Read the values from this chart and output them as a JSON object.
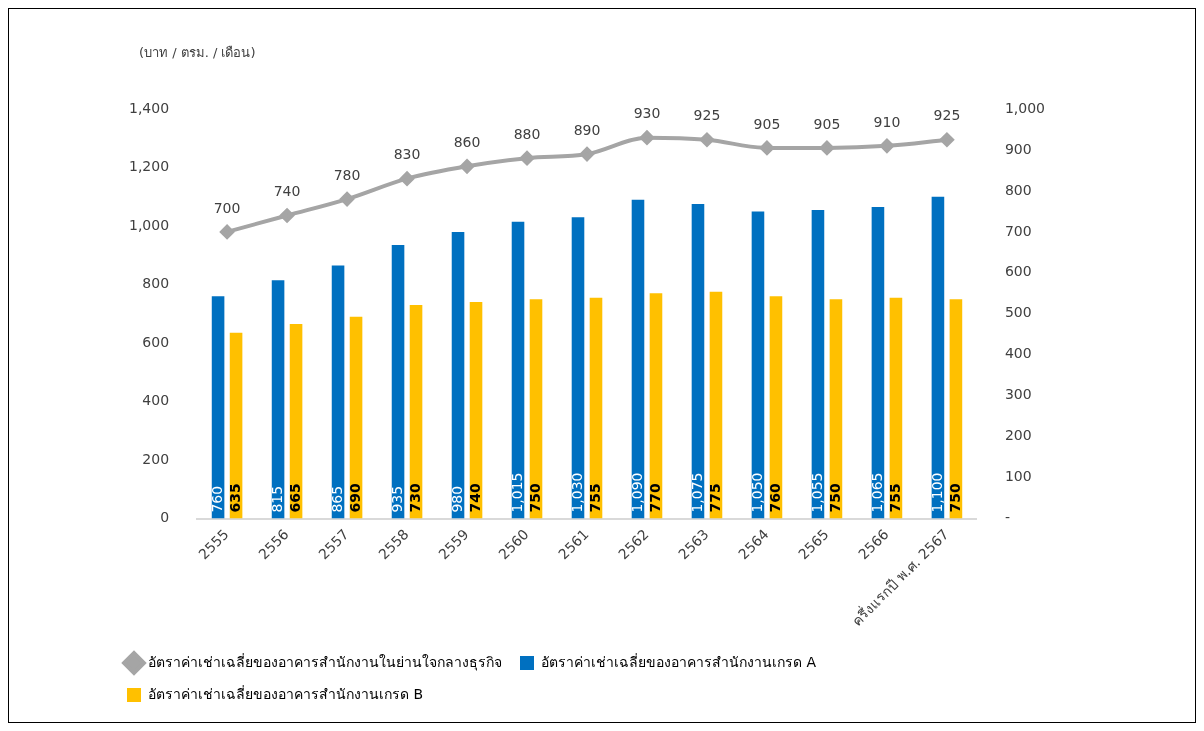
{
  "chart_data": {
    "type": "bar",
    "ylabel": "(บาท / ตรม. / เดือน)",
    "categories": [
      "2555",
      "2556",
      "2557",
      "2558",
      "2559",
      "2560",
      "2561",
      "2562",
      "2563",
      "2564",
      "2565",
      "2566",
      "ครึ่งแรกปี พ.ศ. 2567"
    ],
    "series": [
      {
        "name": "อัตราค่าเช่าเฉลี่ยของอาคารสำนักงานเกรด A",
        "color": "#0070c0",
        "values": [
          760,
          815,
          865,
          935,
          980,
          1015,
          1030,
          1090,
          1075,
          1050,
          1055,
          1065,
          1100
        ],
        "value_labels": [
          "760",
          "815",
          "865",
          "935",
          "980",
          "1,015",
          "1,030",
          "1,090",
          "1,075",
          "1,050",
          "1,055",
          "1,065",
          "1,100"
        ]
      },
      {
        "name": "อัตราค่าเช่าเฉลี่ยของอาคารสำนักงานเกรด B",
        "color": "#ffc000",
        "values": [
          635,
          665,
          690,
          730,
          740,
          750,
          755,
          770,
          775,
          760,
          750,
          755,
          750
        ],
        "value_labels": [
          "635",
          "665",
          "690",
          "730",
          "740",
          "750",
          "755",
          "770",
          "775",
          "760",
          "750",
          "755",
          "750"
        ]
      },
      {
        "name": "อัตราค่าเช่าเฉลี่ยของอาคารสำนักงานในย่านใจกลางธุรกิจ",
        "type": "line",
        "axis": "y2",
        "color": "#a5a5a5",
        "marker": "diamond",
        "values": [
          700,
          740,
          780,
          830,
          860,
          880,
          890,
          930,
          925,
          905,
          905,
          910,
          925
        ],
        "value_labels": [
          "700",
          "740",
          "780",
          "830",
          "860",
          "880",
          "890",
          "930",
          "925",
          "905",
          "905",
          "910",
          "925"
        ]
      }
    ],
    "ylim": [
      0,
      1400
    ],
    "yticks": [
      0,
      200,
      400,
      600,
      800,
      {
        "value": 1000,
        "label": "1,000"
      },
      {
        "value": 1200,
        "label": "1,200"
      },
      {
        "value": 1400,
        "label": "1,400"
      }
    ],
    "y2lim": [
      0,
      1000
    ],
    "y2ticks": [
      {
        "value": 0,
        "label": "-"
      },
      100,
      200,
      300,
      400,
      500,
      600,
      700,
      800,
      900,
      {
        "value": 1000,
        "label": "1,000"
      }
    ],
    "grid": false,
    "legend": "bottom"
  }
}
